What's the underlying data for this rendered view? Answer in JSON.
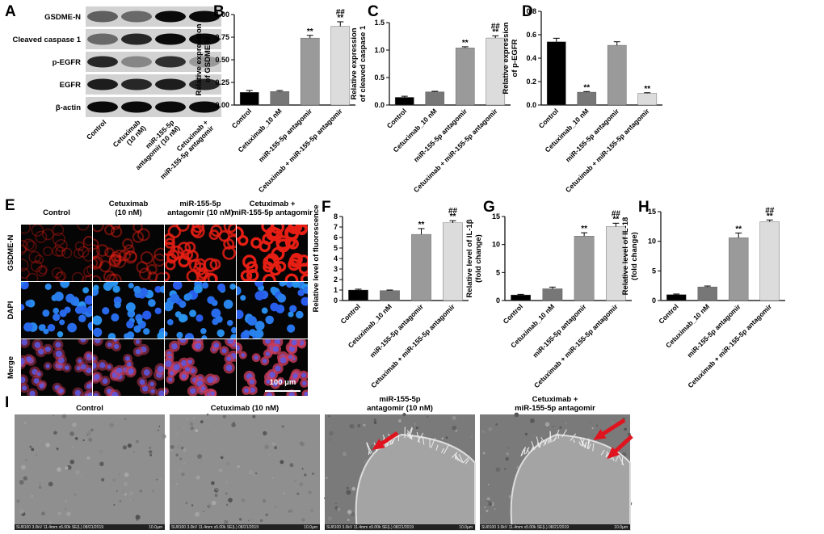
{
  "panel_a": {
    "letter": "A",
    "rows": [
      "GSDME-N",
      "Cleaved caspase 1",
      "p-EGFR",
      "EGFR",
      "β-actin"
    ],
    "columns": [
      [
        "Control"
      ],
      [
        "Cetuximab",
        "(10 nM)"
      ],
      [
        "miR-155-5p",
        "antagomir (10 nM)"
      ],
      [
        "Cetuximab +",
        "miR-155-5p antagomir"
      ]
    ]
  },
  "chart_data": [
    {
      "type": "bar",
      "letter": "B",
      "ylabel": [
        "Relative expression",
        "of GSDME-N"
      ],
      "categories": [
        "Control",
        "Cetuximab_10 nM",
        "miR-155-5p antagomir",
        "Cetuximab + miR-155-5p antagomir"
      ],
      "values": [
        0.14,
        0.15,
        0.74,
        0.87
      ],
      "errors": [
        0.02,
        0.01,
        0.03,
        0.05
      ],
      "colors": [
        "#000000",
        "#777777",
        "#9a9a9a",
        "#dcdcdc"
      ],
      "annotations": [
        null,
        null,
        [
          "**"
        ],
        [
          "##",
          "**"
        ]
      ],
      "ylim": [
        0,
        1
      ],
      "yticks": [
        {
          "value": 0,
          "label": "0.00"
        },
        {
          "value": 0.25,
          "label": "0.25"
        },
        {
          "value": 0.5,
          "label": "0.50"
        },
        {
          "value": 0.75,
          "label": "0.75"
        },
        {
          "value": 1,
          "label": "1.00"
        }
      ]
    },
    {
      "type": "bar",
      "letter": "C",
      "ylabel": [
        "Relative expression",
        "of cleaved caspase 1"
      ],
      "categories": [
        "Control",
        "Cetuximab_10 nM",
        "miR-155-5p antagomir",
        "Cetuximab + miR-155-5p antagomir"
      ],
      "values": [
        0.14,
        0.24,
        1.04,
        1.22
      ],
      "errors": [
        0.02,
        0.01,
        0.02,
        0.04
      ],
      "colors": [
        "#000000",
        "#777777",
        "#9a9a9a",
        "#dcdcdc"
      ],
      "annotations": [
        null,
        null,
        [
          "**"
        ],
        [
          "##",
          "**"
        ]
      ],
      "ylim": [
        0,
        1.5
      ],
      "yticks": [
        {
          "value": 0,
          "label": "0.0"
        },
        0.5,
        {
          "value": 1,
          "label": "1.0"
        },
        1.5
      ]
    },
    {
      "type": "bar",
      "letter": "D",
      "ylabel": [
        "Relative expression",
        "of p-EGFR"
      ],
      "categories": [
        "Control",
        "Cetuximab_10 nM",
        "miR-155-5p antagomir",
        "Cetuximab + miR-155-5p antagomir"
      ],
      "values": [
        0.54,
        0.11,
        0.51,
        0.1
      ],
      "errors": [
        0.03,
        0.005,
        0.03,
        0.005
      ],
      "colors": [
        "#000000",
        "#777777",
        "#9a9a9a",
        "#dcdcdc"
      ],
      "annotations": [
        null,
        [
          "**"
        ],
        null,
        [
          "**"
        ]
      ],
      "ylim": [
        0,
        0.8
      ],
      "yticks": [
        {
          "value": 0,
          "label": "0.0"
        },
        0.2,
        0.4,
        0.6,
        0.8
      ]
    },
    {
      "type": "bar",
      "letter": "F",
      "ylabel": [
        "Relative level of fluorescence"
      ],
      "categories": [
        "Control",
        "Cetuximab_10 nM",
        "miR-155-5p antagomir",
        "Cetuximab + miR-155-5p antagomir"
      ],
      "values": [
        1.0,
        0.95,
        6.3,
        7.4
      ],
      "errors": [
        0.08,
        0.05,
        0.55,
        0.2
      ],
      "colors": [
        "#000000",
        "#777777",
        "#9a9a9a",
        "#dcdcdc"
      ],
      "annotations": [
        null,
        null,
        [
          "**"
        ],
        [
          "##",
          "**"
        ]
      ],
      "ylim": [
        0,
        8
      ],
      "yticks": [
        0,
        1,
        2,
        3,
        4,
        5,
        6,
        7,
        8
      ]
    },
    {
      "type": "bar",
      "letter": "G",
      "ylabel": [
        "Relative level of IL-1β",
        "(fold change)"
      ],
      "categories": [
        "Control",
        "Cetuximab_10 nM",
        "miR-155-5p antagomir",
        "Cetuximab + miR-155-5p antagomir"
      ],
      "values": [
        1.0,
        2.1,
        11.5,
        13.2
      ],
      "errors": [
        0.1,
        0.3,
        0.6,
        0.6
      ],
      "colors": [
        "#000000",
        "#777777",
        "#9a9a9a",
        "#dcdcdc"
      ],
      "annotations": [
        null,
        null,
        [
          "**"
        ],
        [
          "##",
          "**"
        ]
      ],
      "ylim": [
        0,
        15
      ],
      "yticks": [
        0,
        5,
        10,
        15
      ]
    },
    {
      "type": "bar",
      "letter": "H",
      "ylabel": [
        "Relative level of IL-18",
        "(fold change)"
      ],
      "categories": [
        "Control",
        "Cetuximab_10 nM",
        "miR-155-5p antagomir",
        "Cetuximab + miR-155-5p antagomir"
      ],
      "values": [
        1.0,
        2.3,
        10.6,
        13.3
      ],
      "errors": [
        0.1,
        0.15,
        0.8,
        0.3
      ],
      "colors": [
        "#000000",
        "#777777",
        "#9a9a9a",
        "#dcdcdc"
      ],
      "annotations": [
        null,
        null,
        [
          "**"
        ],
        [
          "##",
          "**"
        ]
      ],
      "ylim": [
        0,
        15
      ],
      "yticks": [
        0,
        5,
        10,
        15
      ]
    }
  ],
  "panel_e": {
    "letter": "E",
    "columns": [
      [
        "Control"
      ],
      [
        "Cetuximab",
        "(10 nM)"
      ],
      [
        "miR-155-5p",
        "antagomir (10 nM)"
      ],
      [
        "Cetuximab +",
        "miR-155-5p antagomir"
      ]
    ],
    "rows": [
      "GSDME-N",
      "DAPI",
      "Merge"
    ],
    "scale_bar": "100 μm"
  },
  "panel_i": {
    "letter": "I",
    "columns": [
      [
        "Control"
      ],
      [
        "Cetuximab (10 nM)"
      ],
      [
        "miR-155-5p",
        "antagomir (10 nM)"
      ],
      [
        "Cetuximab +",
        "miR-155-5p antagomir"
      ]
    ],
    "info": "SU8100 3.0kV 11.4mm x5.00k SE(L) 08/21/2019",
    "scale": "10.0µm"
  }
}
